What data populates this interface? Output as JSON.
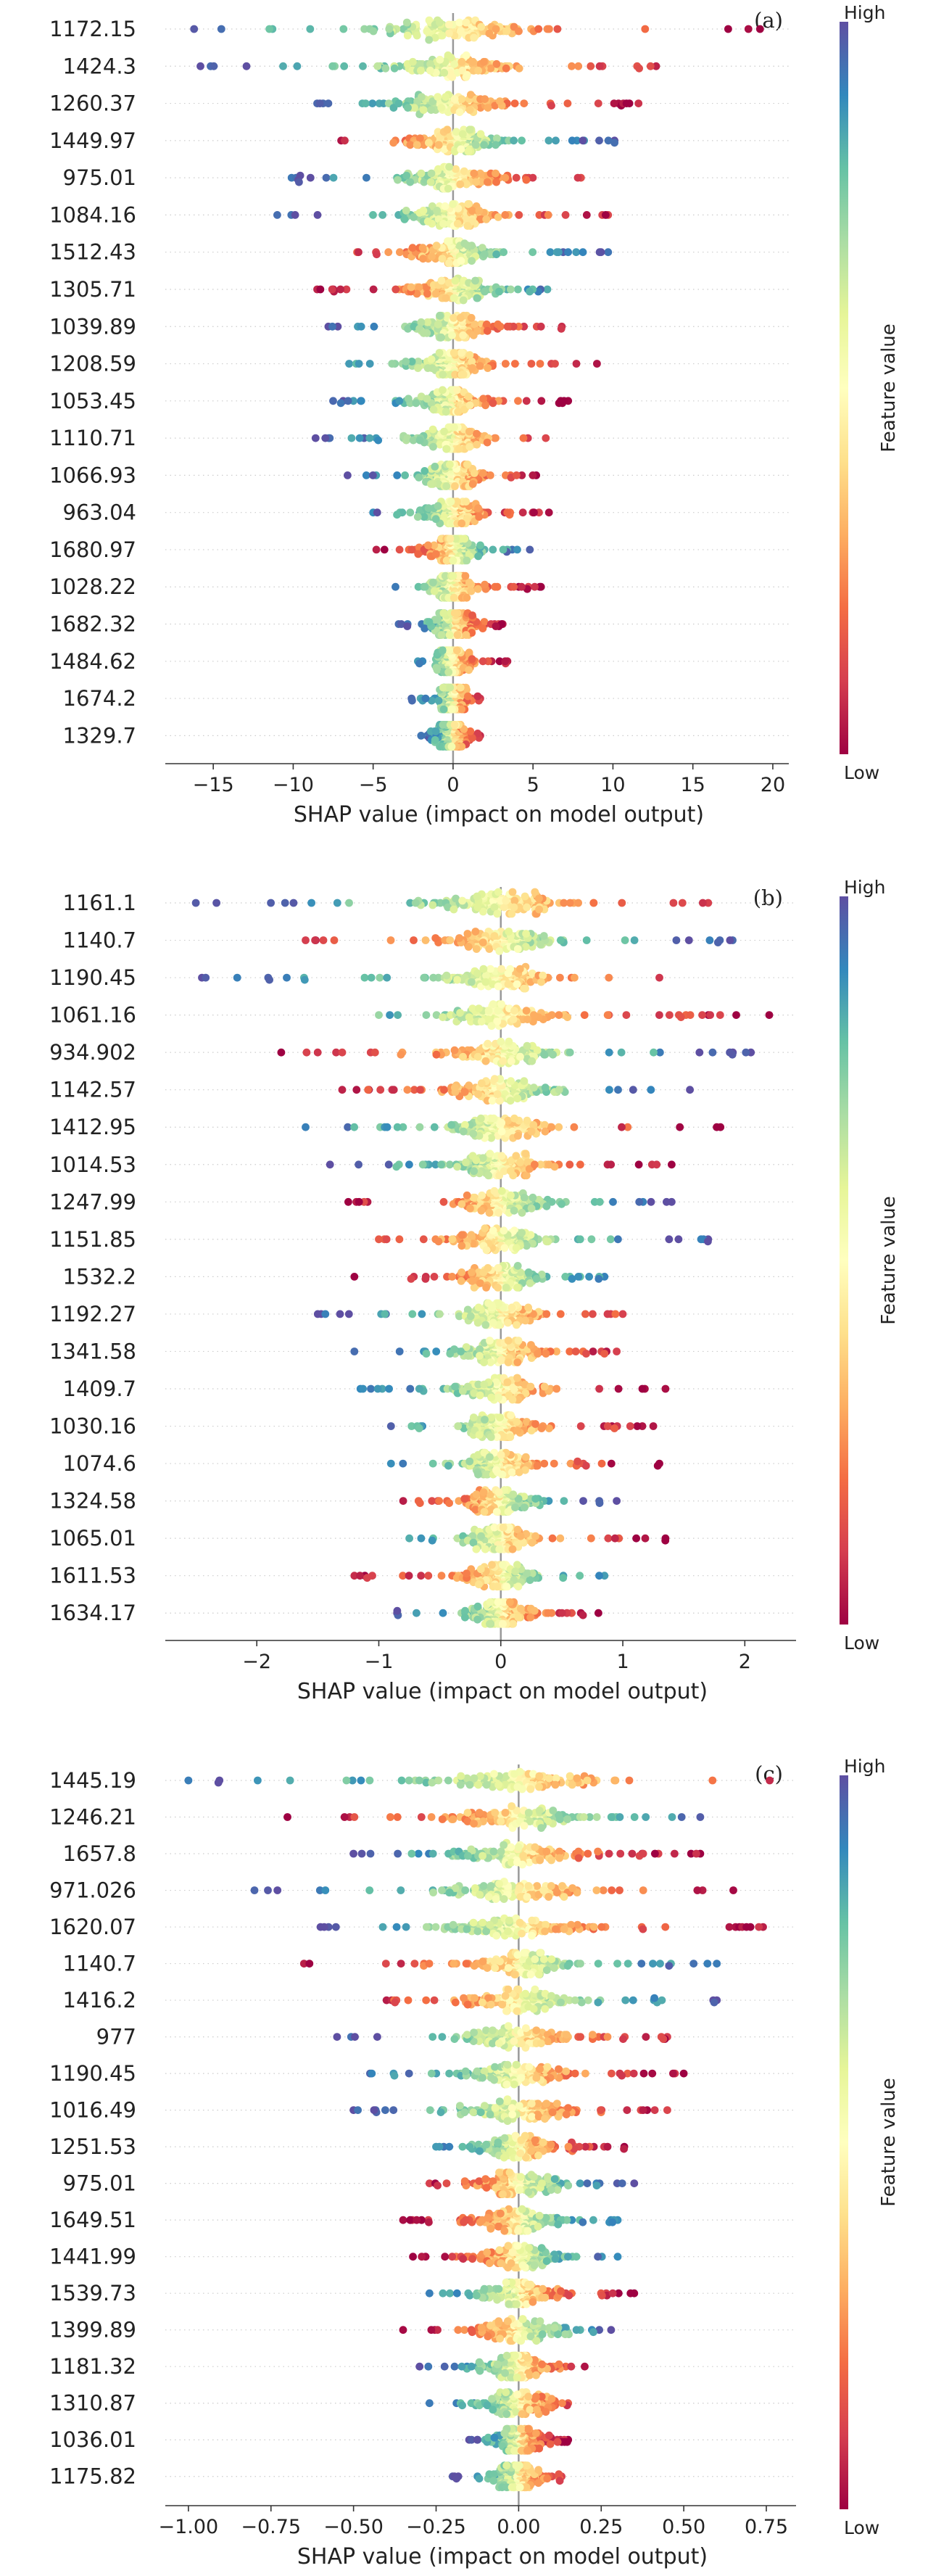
{
  "chart_data": [
    {
      "type": "scatter",
      "panel_label": "(a)",
      "xlabel": "SHAP value (impact on model output)",
      "xlim": [
        -18,
        21
      ],
      "xticks": [
        -15,
        -10,
        -5,
        0,
        5,
        10,
        15,
        20
      ],
      "xtick_labels": [
        "−15",
        "−10",
        "−5",
        "0",
        "5",
        "10",
        "15",
        "20"
      ],
      "colorbar": {
        "label": "Feature value",
        "high": "High",
        "low": "Low"
      },
      "features": [
        {
          "name": "1172.15",
          "min": -16.2,
          "max": 19.2,
          "core": 6.0,
          "pos_high": false
        },
        {
          "name": "1424.3",
          "min": -15.8,
          "max": 12.7,
          "core": 5.5,
          "pos_high": false
        },
        {
          "name": "1260.37",
          "min": -8.5,
          "max": 11.6,
          "core": 5.0,
          "pos_high": false
        },
        {
          "name": "1449.97",
          "min": -7.0,
          "max": 10.1,
          "core": 4.5,
          "pos_high": true
        },
        {
          "name": "975.01",
          "min": -10.1,
          "max": 8.0,
          "core": 4.5,
          "pos_high": false
        },
        {
          "name": "1084.16",
          "min": -11.0,
          "max": 9.7,
          "core": 4.0,
          "pos_high": false
        },
        {
          "name": "1512.43",
          "min": -6.0,
          "max": 9.7,
          "core": 4.0,
          "pos_high": true
        },
        {
          "name": "1305.71",
          "min": -8.5,
          "max": 5.9,
          "core": 4.0,
          "pos_high": true
        },
        {
          "name": "1039.89",
          "min": -7.8,
          "max": 6.8,
          "core": 3.5,
          "pos_high": false
        },
        {
          "name": "1208.59",
          "min": -6.5,
          "max": 9.0,
          "core": 3.5,
          "pos_high": false
        },
        {
          "name": "1053.45",
          "min": -7.5,
          "max": 7.2,
          "core": 3.5,
          "pos_high": false
        },
        {
          "name": "1110.71",
          "min": -8.6,
          "max": 5.8,
          "core": 3.0,
          "pos_high": false
        },
        {
          "name": "1066.93",
          "min": -6.6,
          "max": 5.2,
          "core": 3.0,
          "pos_high": false
        },
        {
          "name": "963.04",
          "min": -5.0,
          "max": 6.0,
          "core": 3.0,
          "pos_high": false
        },
        {
          "name": "1680.97",
          "min": -4.8,
          "max": 4.8,
          "core": 2.5,
          "pos_high": true
        },
        {
          "name": "1028.22",
          "min": -3.6,
          "max": 5.5,
          "core": 2.0,
          "pos_high": false
        },
        {
          "name": "1682.32",
          "min": -3.4,
          "max": 3.1,
          "core": 2.0,
          "pos_high": false
        },
        {
          "name": "1484.62",
          "min": -2.2,
          "max": 3.4,
          "core": 1.5,
          "pos_high": false
        },
        {
          "name": "1674.2",
          "min": -2.6,
          "max": 1.7,
          "core": 1.5,
          "pos_high": false
        },
        {
          "name": "1329.7",
          "min": -2.0,
          "max": 1.7,
          "core": 1.5,
          "pos_high": false
        }
      ]
    },
    {
      "type": "scatter",
      "panel_label": "(b)",
      "xlabel": "SHAP value (impact on model output)",
      "xlim": [
        -2.75,
        2.42
      ],
      "xticks": [
        -2,
        -1,
        0,
        1,
        2
      ],
      "xtick_labels": [
        "−2",
        "−1",
        "0",
        "1",
        "2"
      ],
      "colorbar": {
        "label": "Feature value",
        "high": "High",
        "low": "Low"
      },
      "features": [
        {
          "name": "1161.1",
          "min": -2.5,
          "max": 1.7,
          "core": 0.75,
          "pos_high": false
        },
        {
          "name": "1140.7",
          "min": -1.6,
          "max": 1.9,
          "core": 0.7,
          "pos_high": true
        },
        {
          "name": "1190.45",
          "min": -2.45,
          "max": 1.3,
          "core": 0.6,
          "pos_high": false
        },
        {
          "name": "1061.16",
          "min": -1.0,
          "max": 2.2,
          "core": 0.6,
          "pos_high": false
        },
        {
          "name": "934.902",
          "min": -1.8,
          "max": 2.05,
          "core": 0.6,
          "pos_high": true
        },
        {
          "name": "1142.57",
          "min": -1.3,
          "max": 1.55,
          "core": 0.6,
          "pos_high": true
        },
        {
          "name": "1412.95",
          "min": -1.6,
          "max": 1.8,
          "core": 0.6,
          "pos_high": false
        },
        {
          "name": "1014.53",
          "min": -1.4,
          "max": 1.4,
          "core": 0.55,
          "pos_high": false
        },
        {
          "name": "1247.99",
          "min": -1.25,
          "max": 1.4,
          "core": 0.55,
          "pos_high": true
        },
        {
          "name": "1151.85",
          "min": -1.0,
          "max": 1.7,
          "core": 0.55,
          "pos_high": true
        },
        {
          "name": "1532.2",
          "min": -1.2,
          "max": 0.85,
          "core": 0.5,
          "pos_high": true
        },
        {
          "name": "1192.27",
          "min": -1.5,
          "max": 1.0,
          "core": 0.5,
          "pos_high": false
        },
        {
          "name": "1341.58",
          "min": -1.2,
          "max": 0.95,
          "core": 0.5,
          "pos_high": false
        },
        {
          "name": "1409.7",
          "min": -1.15,
          "max": 1.35,
          "core": 0.5,
          "pos_high": false
        },
        {
          "name": "1030.16",
          "min": -0.9,
          "max": 1.25,
          "core": 0.45,
          "pos_high": false
        },
        {
          "name": "1074.6",
          "min": -0.9,
          "max": 1.3,
          "core": 0.45,
          "pos_high": false
        },
        {
          "name": "1324.58",
          "min": -0.8,
          "max": 0.95,
          "core": 0.45,
          "pos_high": true
        },
        {
          "name": "1065.01",
          "min": -0.75,
          "max": 1.35,
          "core": 0.4,
          "pos_high": false
        },
        {
          "name": "1611.53",
          "min": -1.2,
          "max": 0.85,
          "core": 0.45,
          "pos_high": true
        },
        {
          "name": "1634.17",
          "min": -0.85,
          "max": 0.8,
          "core": 0.4,
          "pos_high": false
        }
      ]
    },
    {
      "type": "scatter",
      "panel_label": "(c)",
      "xlabel": "SHAP value (impact on model output)",
      "xlim": [
        -1.07,
        0.84
      ],
      "xticks": [
        -1.0,
        -0.75,
        -0.5,
        -0.25,
        0.0,
        0.25,
        0.5,
        0.75
      ],
      "xtick_labels": [
        "−1.00",
        "−0.75",
        "−0.50",
        "−0.25",
        "0.00",
        "0.25",
        "0.50",
        "0.75"
      ],
      "colorbar": {
        "label": "Feature value",
        "high": "High",
        "low": "Low"
      },
      "features": [
        {
          "name": "1445.19",
          "min": -1.0,
          "max": 0.76,
          "core": 0.35,
          "pos_high": false
        },
        {
          "name": "1246.21",
          "min": -0.7,
          "max": 0.55,
          "core": 0.3,
          "pos_high": true
        },
        {
          "name": "1657.8",
          "min": -0.5,
          "max": 0.55,
          "core": 0.3,
          "pos_high": false
        },
        {
          "name": "971.026",
          "min": -0.8,
          "max": 0.65,
          "core": 0.3,
          "pos_high": false
        },
        {
          "name": "1620.07",
          "min": -0.6,
          "max": 0.74,
          "core": 0.3,
          "pos_high": false
        },
        {
          "name": "1140.7",
          "min": -0.65,
          "max": 0.6,
          "core": 0.25,
          "pos_high": true
        },
        {
          "name": "1416.2",
          "min": -0.4,
          "max": 0.6,
          "core": 0.25,
          "pos_high": true
        },
        {
          "name": "977",
          "min": -0.55,
          "max": 0.45,
          "core": 0.25,
          "pos_high": false
        },
        {
          "name": "1190.45",
          "min": -0.45,
          "max": 0.5,
          "core": 0.25,
          "pos_high": false
        },
        {
          "name": "1016.49",
          "min": -0.5,
          "max": 0.45,
          "core": 0.25,
          "pos_high": false
        },
        {
          "name": "1251.53",
          "min": -0.25,
          "max": 0.32,
          "core": 0.2,
          "pos_high": false
        },
        {
          "name": "975.01",
          "min": -0.27,
          "max": 0.35,
          "core": 0.2,
          "pos_high": true
        },
        {
          "name": "1649.51",
          "min": -0.35,
          "max": 0.3,
          "core": 0.2,
          "pos_high": true
        },
        {
          "name": "1441.99",
          "min": -0.32,
          "max": 0.3,
          "core": 0.2,
          "pos_high": true
        },
        {
          "name": "1539.73",
          "min": -0.27,
          "max": 0.35,
          "core": 0.2,
          "pos_high": false
        },
        {
          "name": "1399.89",
          "min": -0.35,
          "max": 0.28,
          "core": 0.2,
          "pos_high": true
        },
        {
          "name": "1181.32",
          "min": -0.3,
          "max": 0.2,
          "core": 0.15,
          "pos_high": false
        },
        {
          "name": "1310.87",
          "min": -0.27,
          "max": 0.15,
          "core": 0.15,
          "pos_high": false
        },
        {
          "name": "1036.01",
          "min": -0.15,
          "max": 0.15,
          "core": 0.12,
          "pos_high": false
        },
        {
          "name": "1175.82",
          "min": -0.2,
          "max": 0.13,
          "core": 0.12,
          "pos_high": false
        }
      ]
    }
  ]
}
